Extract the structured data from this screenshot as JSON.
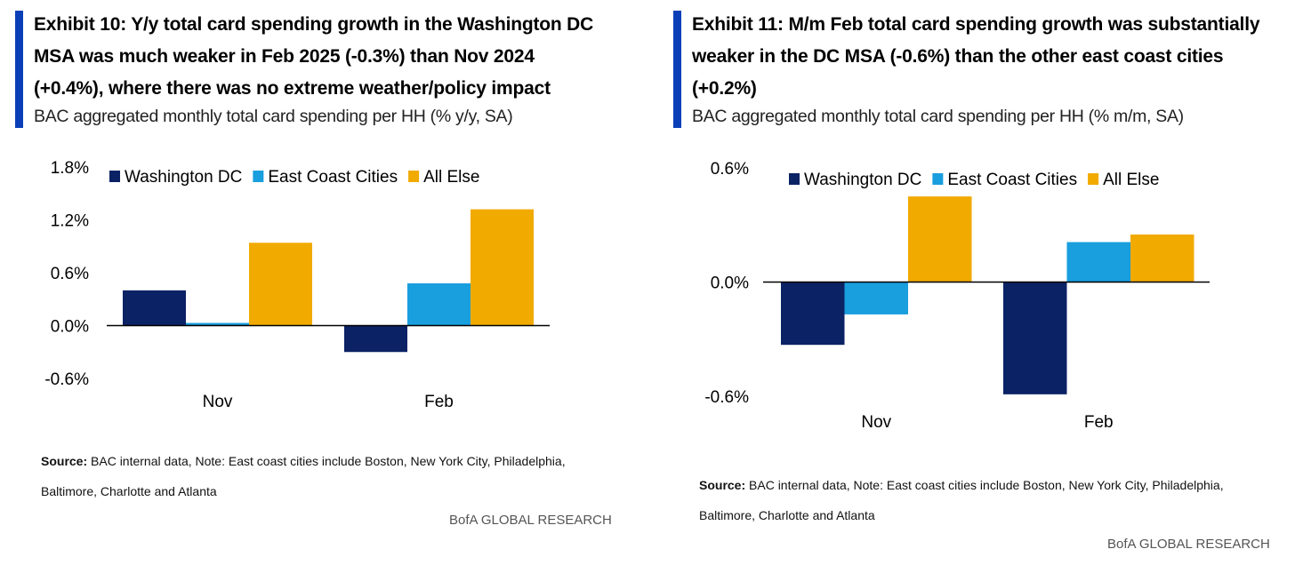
{
  "exhibits": [
    {
      "title_lines": [
        "Exhibit 10: Y/y total card spending growth in the Washington DC",
        "MSA was much weaker in Feb 2025 (-0.3%) than Nov 2024",
        "(+0.4%), where there was no extreme weather/policy impact"
      ],
      "subtitle": "BAC aggregated monthly total card spending per HH (% y/y, SA)",
      "source_label": "Source:",
      "source_lines": [
        "BAC internal data, Note: East coast cities include Boston, New York City, Philadelphia,",
        "Baltimore, Charlotte and Atlanta"
      ],
      "footer": "BofA GLOBAL RESEARCH"
    },
    {
      "title_lines": [
        "Exhibit 11: M/m Feb total card spending growth was substantially",
        "weaker in the DC MSA (-0.6%) than the other east coast cities",
        "(+0.2%)"
      ],
      "subtitle": "BAC aggregated monthly total card spending per HH (% m/m, SA)",
      "source_label": "Source:",
      "source_lines": [
        "BAC internal data, Note: East coast cities include Boston, New York City, Philadelphia,",
        "Baltimore, Charlotte and Atlanta"
      ],
      "footer": "BofA GLOBAL RESEARCH"
    }
  ],
  "colors": {
    "Washington DC": "#0b2265",
    "East Coast Cities": "#199ede",
    "All Else": "#f1aa00",
    "accent": "#0a3fb8"
  },
  "chart_data": [
    {
      "type": "bar",
      "categories": [
        "Nov",
        "Feb"
      ],
      "series": [
        {
          "name": "Washington DC",
          "values": [
            0.4,
            -0.3
          ]
        },
        {
          "name": "East Coast Cities",
          "values": [
            0.03,
            0.48
          ]
        },
        {
          "name": "All Else",
          "values": [
            0.94,
            1.32
          ]
        }
      ],
      "ylim": [
        -0.6,
        1.8
      ],
      "yticks": [
        1.8,
        1.2,
        0.6,
        0.0,
        -0.6
      ],
      "ytick_labels": [
        "1.8%",
        "1.2%",
        "0.6%",
        "0.0%",
        "-0.6%"
      ],
      "legend_position": "top",
      "grid": false
    },
    {
      "type": "bar",
      "categories": [
        "Nov",
        "Feb"
      ],
      "series": [
        {
          "name": "Washington DC",
          "values": [
            -0.33,
            -0.59
          ]
        },
        {
          "name": "East Coast Cities",
          "values": [
            -0.17,
            0.21
          ]
        },
        {
          "name": "All Else",
          "values": [
            0.45,
            0.25
          ]
        }
      ],
      "ylim": [
        -0.6,
        0.6
      ],
      "yticks": [
        0.6,
        0.0,
        -0.6
      ],
      "ytick_labels": [
        "0.6%",
        "0.0%",
        "-0.6%"
      ],
      "legend_position": "top",
      "grid": false
    }
  ]
}
